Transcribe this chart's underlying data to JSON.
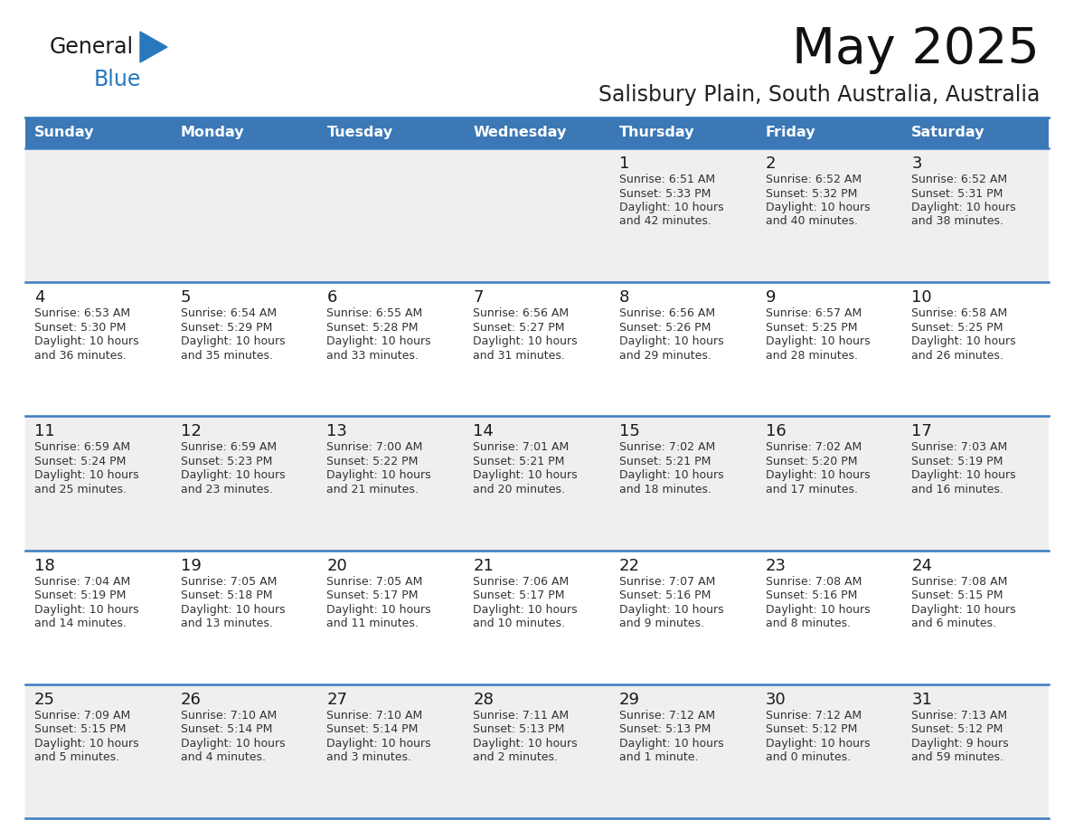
{
  "title": "May 2025",
  "subtitle": "Salisbury Plain, South Australia, Australia",
  "days_of_week": [
    "Sunday",
    "Monday",
    "Tuesday",
    "Wednesday",
    "Thursday",
    "Friday",
    "Saturday"
  ],
  "header_bg": "#3b78b5",
  "header_text": "#ffffff",
  "row_bg_light": "#efefef",
  "row_bg_white": "#ffffff",
  "day_num_color": "#1a1a1a",
  "text_color": "#333333",
  "line_color": "#3a7abf",
  "logo_black": "#1a1a1a",
  "logo_blue": "#2878be",
  "calendar_data": [
    [
      null,
      null,
      null,
      null,
      {
        "day": 1,
        "sunrise": "6:51 AM",
        "sunset": "5:33 PM",
        "daylight": "10 hours and 42 minutes"
      },
      {
        "day": 2,
        "sunrise": "6:52 AM",
        "sunset": "5:32 PM",
        "daylight": "10 hours and 40 minutes"
      },
      {
        "day": 3,
        "sunrise": "6:52 AM",
        "sunset": "5:31 PM",
        "daylight": "10 hours and 38 minutes"
      }
    ],
    [
      {
        "day": 4,
        "sunrise": "6:53 AM",
        "sunset": "5:30 PM",
        "daylight": "10 hours and 36 minutes"
      },
      {
        "day": 5,
        "sunrise": "6:54 AM",
        "sunset": "5:29 PM",
        "daylight": "10 hours and 35 minutes"
      },
      {
        "day": 6,
        "sunrise": "6:55 AM",
        "sunset": "5:28 PM",
        "daylight": "10 hours and 33 minutes"
      },
      {
        "day": 7,
        "sunrise": "6:56 AM",
        "sunset": "5:27 PM",
        "daylight": "10 hours and 31 minutes"
      },
      {
        "day": 8,
        "sunrise": "6:56 AM",
        "sunset": "5:26 PM",
        "daylight": "10 hours and 29 minutes"
      },
      {
        "day": 9,
        "sunrise": "6:57 AM",
        "sunset": "5:25 PM",
        "daylight": "10 hours and 28 minutes"
      },
      {
        "day": 10,
        "sunrise": "6:58 AM",
        "sunset": "5:25 PM",
        "daylight": "10 hours and 26 minutes"
      }
    ],
    [
      {
        "day": 11,
        "sunrise": "6:59 AM",
        "sunset": "5:24 PM",
        "daylight": "10 hours and 25 minutes"
      },
      {
        "day": 12,
        "sunrise": "6:59 AM",
        "sunset": "5:23 PM",
        "daylight": "10 hours and 23 minutes"
      },
      {
        "day": 13,
        "sunrise": "7:00 AM",
        "sunset": "5:22 PM",
        "daylight": "10 hours and 21 minutes"
      },
      {
        "day": 14,
        "sunrise": "7:01 AM",
        "sunset": "5:21 PM",
        "daylight": "10 hours and 20 minutes"
      },
      {
        "day": 15,
        "sunrise": "7:02 AM",
        "sunset": "5:21 PM",
        "daylight": "10 hours and 18 minutes"
      },
      {
        "day": 16,
        "sunrise": "7:02 AM",
        "sunset": "5:20 PM",
        "daylight": "10 hours and 17 minutes"
      },
      {
        "day": 17,
        "sunrise": "7:03 AM",
        "sunset": "5:19 PM",
        "daylight": "10 hours and 16 minutes"
      }
    ],
    [
      {
        "day": 18,
        "sunrise": "7:04 AM",
        "sunset": "5:19 PM",
        "daylight": "10 hours and 14 minutes"
      },
      {
        "day": 19,
        "sunrise": "7:05 AM",
        "sunset": "5:18 PM",
        "daylight": "10 hours and 13 minutes"
      },
      {
        "day": 20,
        "sunrise": "7:05 AM",
        "sunset": "5:17 PM",
        "daylight": "10 hours and 11 minutes"
      },
      {
        "day": 21,
        "sunrise": "7:06 AM",
        "sunset": "5:17 PM",
        "daylight": "10 hours and 10 minutes"
      },
      {
        "day": 22,
        "sunrise": "7:07 AM",
        "sunset": "5:16 PM",
        "daylight": "10 hours and 9 minutes"
      },
      {
        "day": 23,
        "sunrise": "7:08 AM",
        "sunset": "5:16 PM",
        "daylight": "10 hours and 8 minutes"
      },
      {
        "day": 24,
        "sunrise": "7:08 AM",
        "sunset": "5:15 PM",
        "daylight": "10 hours and 6 minutes"
      }
    ],
    [
      {
        "day": 25,
        "sunrise": "7:09 AM",
        "sunset": "5:15 PM",
        "daylight": "10 hours and 5 minutes"
      },
      {
        "day": 26,
        "sunrise": "7:10 AM",
        "sunset": "5:14 PM",
        "daylight": "10 hours and 4 minutes"
      },
      {
        "day": 27,
        "sunrise": "7:10 AM",
        "sunset": "5:14 PM",
        "daylight": "10 hours and 3 minutes"
      },
      {
        "day": 28,
        "sunrise": "7:11 AM",
        "sunset": "5:13 PM",
        "daylight": "10 hours and 2 minutes"
      },
      {
        "day": 29,
        "sunrise": "7:12 AM",
        "sunset": "5:13 PM",
        "daylight": "10 hours and 1 minute"
      },
      {
        "day": 30,
        "sunrise": "7:12 AM",
        "sunset": "5:12 PM",
        "daylight": "10 hours and 0 minutes"
      },
      {
        "day": 31,
        "sunrise": "7:13 AM",
        "sunset": "5:12 PM",
        "daylight": "9 hours and 59 minutes"
      }
    ]
  ]
}
